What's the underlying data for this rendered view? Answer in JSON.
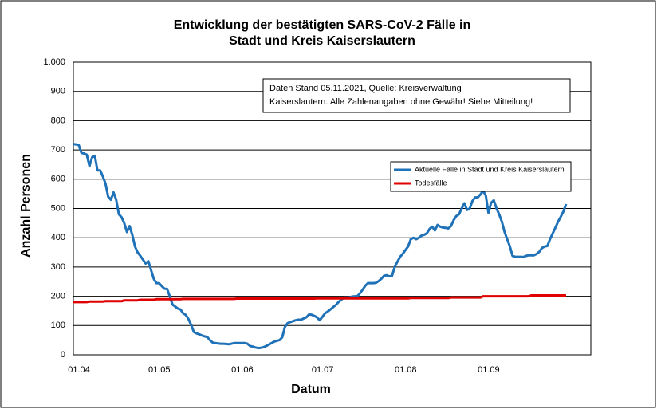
{
  "chart_data": {
    "type": "line",
    "title": [
      "Entwicklung der bestätigten SARS-CoV-2 Fälle in",
      "Stadt und Kreis Kaiserslautern"
    ],
    "annotation": [
      "Daten Stand 05.11.2021, Quelle: Kreisverwaltung",
      "Kaiserslautern. Alle Zahlenangaben ohne Gewähr! Siehe Mitteilung!"
    ],
    "xlabel": "Datum",
    "ylabel": "Anzahl Personen",
    "ylim": [
      0,
      1000
    ],
    "yticks": [
      0,
      100,
      200,
      300,
      400,
      500,
      600,
      700,
      800,
      900,
      {
        "value": 1000,
        "label": "1.000"
      }
    ],
    "grid": true,
    "legend": "upper right",
    "categories": [
      "01.04",
      null,
      null,
      null,
      null,
      null,
      null,
      null,
      null,
      null,
      null,
      null,
      null,
      null,
      null,
      null,
      null,
      null,
      null,
      null,
      null,
      null,
      null,
      null,
      null,
      null,
      null,
      null,
      null,
      null,
      "01.05",
      null,
      null,
      null,
      null,
      null,
      null,
      null,
      null,
      null,
      null,
      null,
      null,
      null,
      null,
      null,
      null,
      null,
      null,
      null,
      null,
      null,
      null,
      null,
      null,
      null,
      null,
      null,
      null,
      null,
      null,
      "01.06",
      null,
      null,
      null,
      null,
      null,
      null,
      null,
      null,
      null,
      null,
      null,
      null,
      null,
      null,
      null,
      null,
      null,
      null,
      null,
      null,
      null,
      null,
      null,
      null,
      null,
      null,
      null,
      null,
      null,
      "01.07",
      null,
      null,
      null,
      null,
      null,
      null,
      null,
      null,
      null,
      null,
      null,
      null,
      null,
      null,
      null,
      null,
      null,
      null,
      null,
      null,
      null,
      null,
      null,
      null,
      null,
      null,
      null,
      null,
      null,
      null,
      "01.08",
      null,
      null,
      null,
      null,
      null,
      null,
      null,
      null,
      null,
      null,
      null,
      null,
      null,
      null,
      null,
      null,
      null,
      null,
      null,
      null,
      null,
      null,
      null,
      null,
      null,
      null,
      null,
      null,
      null,
      null,
      "01.09",
      null,
      null,
      null,
      null,
      null,
      null,
      null,
      null,
      null,
      null,
      null,
      null,
      null,
      null,
      null,
      null,
      null,
      null,
      null,
      null,
      null,
      null,
      null,
      null,
      null,
      null,
      null,
      null,
      null,
      null,
      null
    ],
    "series": [
      {
        "name": "Aktuelle Fälle in Stadt und Kreis Kaiserslautern",
        "color": "#1f72b8",
        "values": [
          720,
          719,
          717,
          690,
          688,
          684,
          645,
          675,
          680,
          630,
          630,
          610,
          585,
          540,
          530,
          555,
          530,
          480,
          470,
          450,
          420,
          440,
          410,
          370,
          350,
          338,
          325,
          312,
          320,
          290,
          260,
          245,
          245,
          235,
          226,
          225,
          200,
          172,
          165,
          158,
          155,
          142,
          136,
          122,
          102,
          78,
          73,
          70,
          66,
          63,
          61,
          50,
          42,
          40,
          39,
          38,
          38,
          37,
          36,
          38,
          40,
          40,
          40,
          40,
          40,
          38,
          30,
          28,
          25,
          23,
          24,
          26,
          30,
          35,
          40,
          45,
          48,
          50,
          60,
          95,
          108,
          112,
          115,
          118,
          120,
          120,
          124,
          128,
          138,
          137,
          133,
          128,
          118,
          130,
          142,
          148,
          155,
          163,
          170,
          180,
          188,
          195,
          195,
          195,
          199,
          200,
          200,
          210,
          222,
          236,
          245,
          245,
          245,
          246,
          252,
          260,
          270,
          272,
          268,
          270,
          300,
          318,
          335,
          345,
          358,
          370,
          395,
          400,
          395,
          400,
          407,
          410,
          415,
          430,
          438,
          425,
          444,
          438,
          435,
          434,
          432,
          440,
          460,
          474,
          480,
          500,
          518,
          495,
          500,
          525,
          538,
          538,
          548,
          560,
          545,
          485,
          520,
          528,
          500,
          480,
          455,
          420,
          395,
          370,
          338,
          335,
          335,
          335,
          334,
          338,
          340,
          340,
          340,
          345,
          352,
          365,
          370,
          372,
          395,
          415,
          435,
          455,
          472,
          490,
          515
        ]
      },
      {
        "name": "Todesfälle",
        "color": "#e00000",
        "values": [
          180,
          180,
          180,
          180,
          180,
          180,
          182,
          182,
          182,
          182,
          182,
          182,
          183,
          183,
          183,
          183,
          183,
          183,
          183,
          186,
          186,
          186,
          186,
          186,
          186,
          188,
          188,
          188,
          188,
          188,
          188,
          190,
          190,
          190,
          190,
          190,
          190,
          190,
          190,
          190,
          190,
          191,
          191,
          191,
          191,
          191,
          191,
          191,
          191,
          191,
          191,
          191,
          191,
          191,
          191,
          191,
          191,
          191,
          191,
          191,
          191,
          192,
          192,
          192,
          192,
          192,
          192,
          192,
          192,
          192,
          192,
          192,
          192,
          192,
          192,
          192,
          192,
          192,
          192,
          192,
          192,
          192,
          192,
          192,
          192,
          192,
          192,
          192,
          192,
          192,
          192,
          193,
          193,
          193,
          193,
          193,
          193,
          193,
          193,
          193,
          193,
          193,
          193,
          193,
          193,
          193,
          193,
          193,
          193,
          193,
          193,
          193,
          193,
          193,
          193,
          193,
          193,
          193,
          193,
          193,
          193,
          193,
          193,
          193,
          193,
          193,
          194,
          194,
          194,
          194,
          194,
          194,
          194,
          194,
          194,
          194,
          194,
          194,
          194,
          194,
          194,
          196,
          196,
          196,
          196,
          196,
          196,
          196,
          196,
          196,
          196,
          196,
          196,
          200,
          200,
          200,
          200,
          200,
          200,
          200,
          200,
          200,
          200,
          200,
          200,
          200,
          200,
          200,
          200,
          200,
          200,
          203,
          203,
          203,
          203,
          203,
          203,
          203,
          203,
          203,
          203,
          203,
          203,
          203,
          203
        ]
      }
    ]
  }
}
